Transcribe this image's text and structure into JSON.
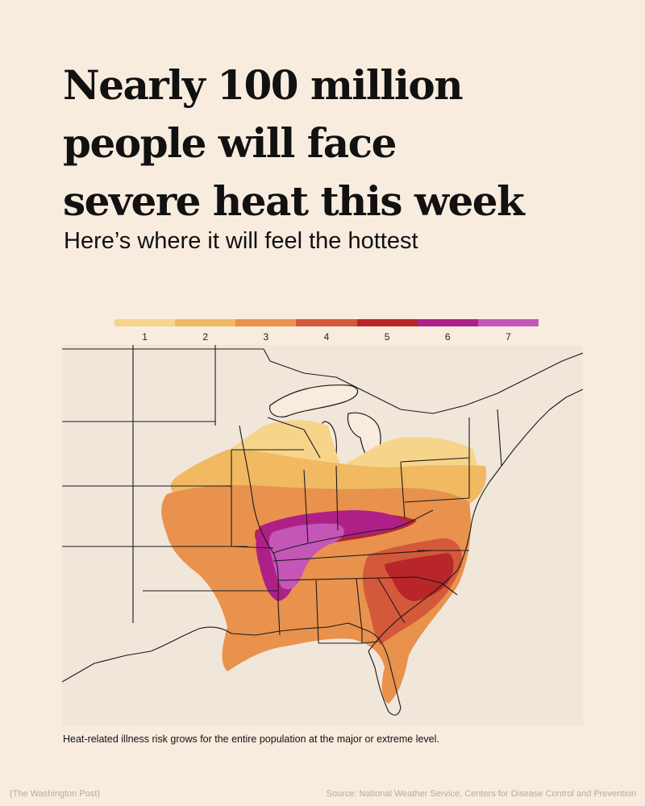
{
  "headline": {
    "line1": "Nearly 100 million",
    "line2": "people will face",
    "line3": "severe heat this week"
  },
  "subhead": "Here’s where it will feel the hottest",
  "legend": {
    "levels": [
      {
        "label": "1",
        "color": "#f6d48a"
      },
      {
        "label": "2",
        "color": "#f0b962"
      },
      {
        "label": "3",
        "color": "#e8924e"
      },
      {
        "label": "4",
        "color": "#d4593b"
      },
      {
        "label": "5",
        "color": "#b8262a"
      },
      {
        "label": "6",
        "color": "#ae2088"
      },
      {
        "label": "7",
        "color": "#c456b8"
      }
    ]
  },
  "map": {
    "land_color": "#f1e6da",
    "water_color": "#f8ecdf",
    "border_color": "#1a1a1a"
  },
  "note": "Heat-related illness risk grows for the entire population at the major or extreme level.",
  "credit": "(The Washington Post)",
  "source": "Source: National Weather Service, Centers for Disease Control and Prevention"
}
